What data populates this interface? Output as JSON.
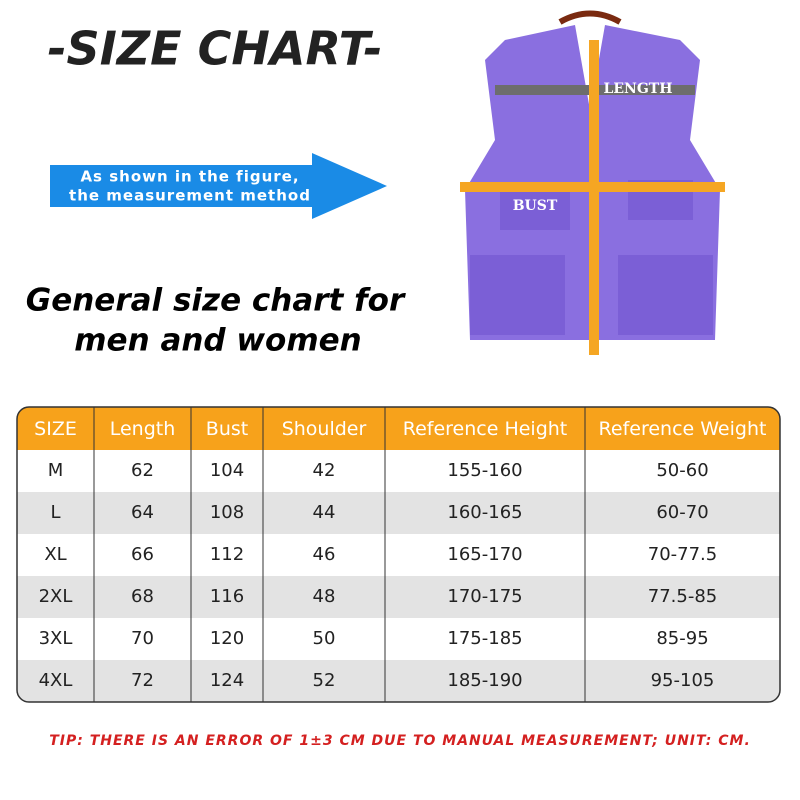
{
  "header": {
    "title": "-SIZE CHART-"
  },
  "arrow": {
    "lines": [
      "As shown in the figure,",
      "the measurement method"
    ]
  },
  "subtitle": {
    "lines": [
      "General size chart for",
      "men and women"
    ]
  },
  "figure": {
    "length_label": "LENGTH",
    "bust_label": "BUST"
  },
  "table": {
    "columns": [
      "SIZE",
      "Length",
      "Bust",
      "Shoulder",
      "Reference Height",
      "Reference Weight"
    ],
    "rows": [
      [
        "M",
        "62",
        "104",
        "42",
        "155-160",
        "50-60"
      ],
      [
        "L",
        "64",
        "108",
        "44",
        "160-165",
        "60-70"
      ],
      [
        "XL",
        "66",
        "112",
        "46",
        "165-170",
        "70-77.5"
      ],
      [
        "2XL",
        "68",
        "116",
        "48",
        "170-175",
        "77.5-85"
      ],
      [
        "3XL",
        "70",
        "120",
        "50",
        "175-185",
        "85-95"
      ],
      [
        "4XL",
        "72",
        "124",
        "52",
        "185-190",
        "95-105"
      ]
    ]
  },
  "tip": "TIP: THERE IS AN ERROR OF 1±3 CM DUE TO MANUAL MEASUREMENT; UNIT: CM."
}
